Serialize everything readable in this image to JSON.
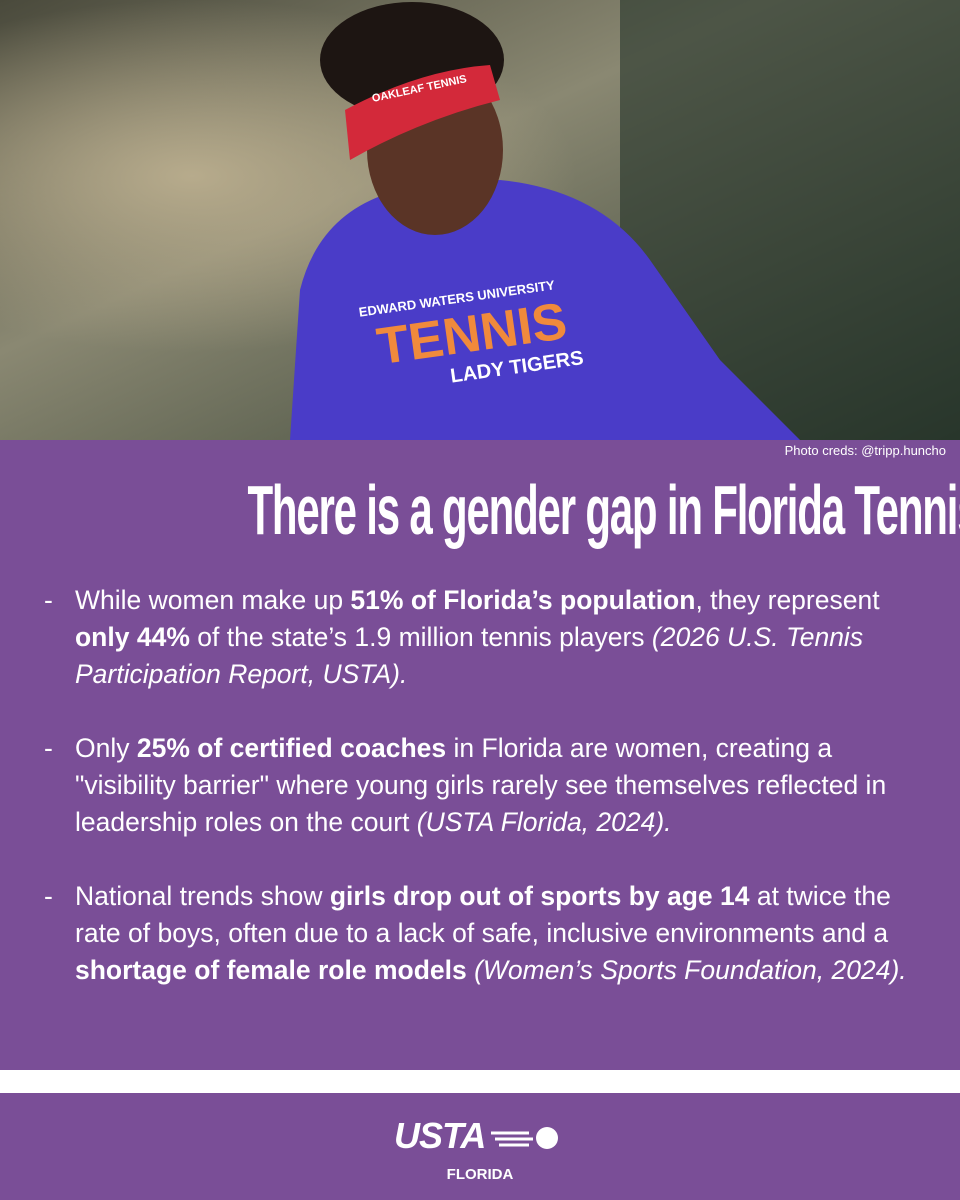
{
  "photo": {
    "credit": "Photo creds: @tripp.huncho",
    "visor_text": "OAKLEAF TENNIS",
    "shirt_text": [
      "EDWARD WATERS UNIVERSITY",
      "TENNIS",
      "LADY TIGERS"
    ]
  },
  "title": "There is a gender gap in Florida Tennis.",
  "bullets": [
    {
      "marker": "-",
      "runs": [
        {
          "text": "While women make up ",
          "style": "normal"
        },
        {
          "text": "51% of Florida’s population",
          "style": "bold"
        },
        {
          "text": ", they represent ",
          "style": "normal"
        },
        {
          "text": "only 44%",
          "style": "bold"
        },
        {
          "text": " of the state’s 1.9 million tennis players ",
          "style": "normal"
        },
        {
          "text": "(2026 U.S. Tennis Participation Report, USTA).",
          "style": "italic"
        }
      ]
    },
    {
      "marker": "-",
      "runs": [
        {
          "text": "Only ",
          "style": "normal"
        },
        {
          "text": "25% of certified coaches",
          "style": "bold"
        },
        {
          "text": " in Florida are women, creating a \"visibility barrier\" where young girls rarely see themselves reflected in leadership roles on the court ",
          "style": "normal"
        },
        {
          "text": "(USTA Florida, 2024).",
          "style": "italic"
        }
      ]
    },
    {
      "marker": "-",
      "runs": [
        {
          "text": "National trends show ",
          "style": "normal"
        },
        {
          "text": "girls drop out of sports by age 14",
          "style": "bold"
        },
        {
          "text": " at twice the rate of boys, often due to a lack of safe, inclusive environments and a ",
          "style": "normal"
        },
        {
          "text": "shortage of female role models",
          "style": "bold"
        },
        {
          "text": " (Women’s Sports Foundation, 2024).",
          "style": "italic"
        }
      ]
    }
  ],
  "footer": {
    "logo": "USTA",
    "region": "FLORIDA"
  }
}
